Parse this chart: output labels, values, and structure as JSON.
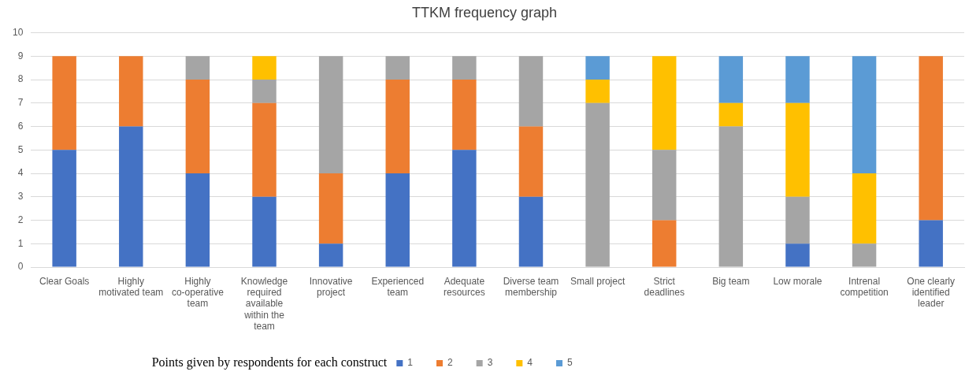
{
  "chart_data": {
    "type": "bar",
    "title": "TTKM frequency graph",
    "stacked": true,
    "categories": [
      "Clear Goals",
      "Highly motivated team",
      "Highly co-operative team",
      "Knowledge required available within the team",
      "Innovative project",
      "Experienced team",
      "Adequate resources",
      "Diverse team membership",
      "Small project",
      "Strict deadlines",
      "Big team",
      "Low morale",
      "Intrenal competition",
      "One clearly identified leader"
    ],
    "series": [
      {
        "name": "1",
        "color": "#4472c4",
        "values": [
          5,
          6,
          4,
          3,
          1,
          4,
          5,
          3,
          0,
          0,
          0,
          1,
          0,
          2
        ]
      },
      {
        "name": "2",
        "color": "#ed7d31",
        "values": [
          4,
          3,
          4,
          4,
          3,
          4,
          3,
          3,
          0,
          2,
          0,
          0,
          0,
          7
        ]
      },
      {
        "name": "3",
        "color": "#a5a5a5",
        "values": [
          0,
          0,
          1,
          1,
          5,
          1,
          1,
          3,
          7,
          3,
          6,
          2,
          1,
          0
        ]
      },
      {
        "name": "4",
        "color": "#ffc000",
        "values": [
          0,
          0,
          0,
          1,
          0,
          0,
          0,
          0,
          1,
          4,
          1,
          4,
          3,
          0
        ]
      },
      {
        "name": "5",
        "color": "#5b9bd5",
        "values": [
          0,
          0,
          0,
          0,
          0,
          0,
          0,
          0,
          1,
          0,
          2,
          2,
          5,
          0
        ]
      }
    ],
    "ylim": [
      0,
      10
    ],
    "yticks": [
      0,
      1,
      2,
      3,
      4,
      5,
      6,
      7,
      8,
      9,
      10
    ],
    "grid": "y",
    "legend": "bottom",
    "legend_title": "Points given by respondents for each construct"
  }
}
